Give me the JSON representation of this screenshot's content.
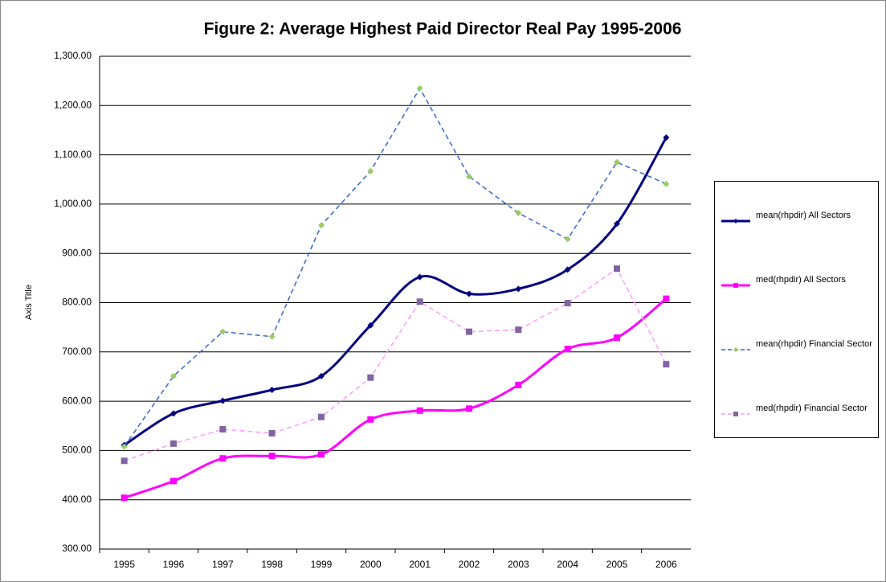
{
  "chart_data": {
    "type": "line",
    "title": "Figure 2: Average Highest Paid Director Real Pay  1995-2006",
    "y_label": "Axis Title",
    "categories": [
      "1995",
      "1996",
      "1997",
      "1998",
      "1999",
      "2000",
      "2001",
      "2002",
      "2003",
      "2004",
      "2005",
      "2006"
    ],
    "ylim": [
      300,
      1300
    ],
    "yticks": [
      {
        "value": 300,
        "label": "300.00"
      },
      {
        "value": 400,
        "label": "400.00"
      },
      {
        "value": 500,
        "label": "500.00"
      },
      {
        "value": 600,
        "label": "600.00"
      },
      {
        "value": 700,
        "label": "700.00"
      },
      {
        "value": 800,
        "label": "800.00"
      },
      {
        "value": 900,
        "label": "900.00"
      },
      {
        "value": 1000,
        "label": "1,000.00"
      },
      {
        "value": 1100,
        "label": "1,100.00"
      },
      {
        "value": 1200,
        "label": "1,200.00"
      },
      {
        "value": 1300,
        "label": "1,300.00"
      }
    ],
    "grid": true,
    "legend": "right",
    "series": [
      {
        "name": "mean(rhpdir) All Sectors",
        "color": "#000080",
        "marker": "diamond",
        "marker_color": "#000080",
        "dashed": false,
        "smooth": true,
        "values": [
          511,
          575,
          601,
          623,
          651,
          754,
          852,
          818,
          828,
          867,
          960,
          1135
        ]
      },
      {
        "name": "med(rhpdir) All Sectors",
        "color": "#ff00ff",
        "marker": "square",
        "marker_color": "#ff00ff",
        "dashed": false,
        "smooth": true,
        "values": [
          404,
          438,
          484,
          489,
          492,
          563,
          581,
          585,
          633,
          706,
          729,
          808
        ]
      },
      {
        "name": "mean(rhpdir) Financial Sector",
        "color": "#3366cc",
        "marker": "diamond",
        "marker_color": "#99cc66",
        "dashed": true,
        "smooth": false,
        "values": [
          508,
          651,
          741,
          731,
          957,
          1067,
          1235,
          1056,
          982,
          929,
          1085,
          1041
        ]
      },
      {
        "name": "med(rhpdir) Financial Sector",
        "color": "#ff99ff",
        "marker": "square",
        "marker_color": "#8064a2",
        "dashed": true,
        "smooth": false,
        "values": [
          479,
          514,
          543,
          535,
          568,
          648,
          802,
          741,
          745,
          799,
          869,
          675
        ]
      }
    ]
  }
}
